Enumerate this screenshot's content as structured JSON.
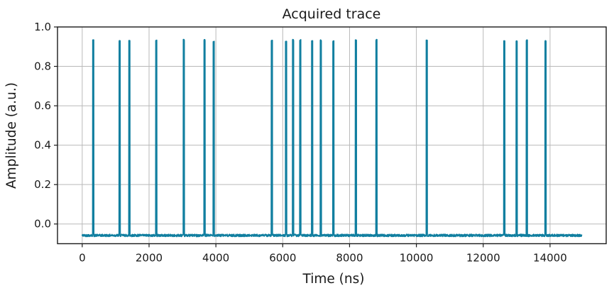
{
  "chart_data": {
    "type": "line",
    "title": "Acquired trace",
    "xlabel": "Time (ns)",
    "ylabel": "Amplitude (a.u.)",
    "xlim": [
      -740,
      15680
    ],
    "ylim": [
      -0.1,
      1.0
    ],
    "x_ticks": [
      {
        "value": 0,
        "label": "0"
      },
      {
        "value": 2000,
        "label": "2000"
      },
      {
        "value": 4000,
        "label": "4000"
      },
      {
        "value": 6000,
        "label": "6000"
      },
      {
        "value": 8000,
        "label": "8000"
      },
      {
        "value": 10000,
        "label": "10000"
      },
      {
        "value": 12000,
        "label": "12000"
      },
      {
        "value": 14000,
        "label": "14000"
      }
    ],
    "y_ticks": [
      {
        "value": 0.0,
        "label": "0.0"
      },
      {
        "value": 0.2,
        "label": "0.2"
      },
      {
        "value": 0.4,
        "label": "0.4"
      },
      {
        "value": 0.6,
        "label": "0.6"
      },
      {
        "value": 0.8,
        "label": "0.8"
      },
      {
        "value": 1.0,
        "label": "1.0"
      }
    ],
    "grid": true,
    "legend": "none",
    "series": [
      {
        "name": "acquired-trace",
        "description": "Noisy baseline with narrow rectangular pulses",
        "baseline_level": -0.058,
        "peak_level": 0.93,
        "noise_peak_to_peak": 0.012,
        "pulse_half_width_ns": 18,
        "trace_start_ns": 0,
        "trace_end_ns": 14950,
        "pulse_times_ns": [
          330,
          1120,
          1410,
          2215,
          3040,
          3660,
          3935,
          5675,
          6100,
          6310,
          6525,
          6880,
          7140,
          7515,
          8190,
          8805,
          10310,
          12630,
          13000,
          13305,
          13865
        ]
      }
    ],
    "colors": {
      "trace": "#117fa0",
      "grid": "#b9b9b9",
      "spine": "#1a1a1a",
      "text": "#1a1a1a",
      "background": "#ffffff"
    }
  }
}
